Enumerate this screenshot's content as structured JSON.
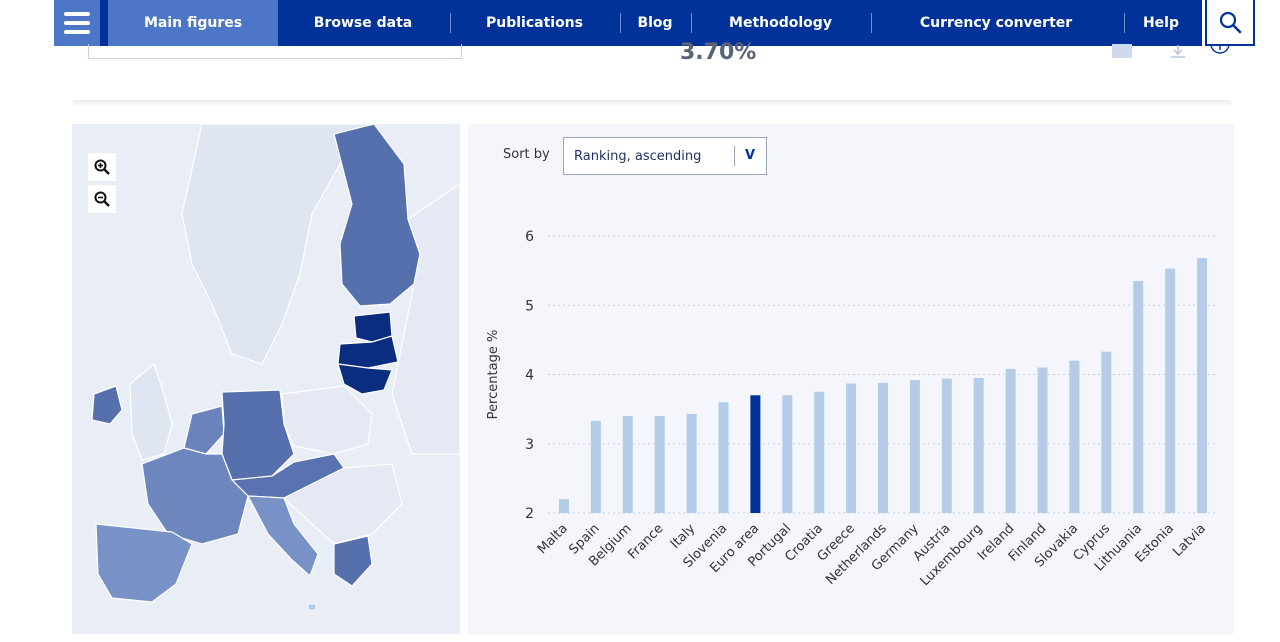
{
  "nav": {
    "items": [
      "Main figures",
      "Browse data",
      "Publications",
      "Blog",
      "Methodology",
      "Currency converter",
      "Help"
    ],
    "active_index": 0,
    "colors": {
      "bar": "#003299",
      "active": "#4d76c7"
    }
  },
  "headline": {
    "value": "3.70%"
  },
  "sort": {
    "label": "Sort by",
    "value": "Ranking, ascending",
    "arrow": "V"
  },
  "map": {
    "zoom_in_icon": "zoom-in-icon",
    "zoom_out_icon": "zoom-out-icon"
  },
  "chart_data": {
    "type": "bar",
    "ylabel": "Percentage %",
    "ylim": [
      2,
      6
    ],
    "yticks": [
      2,
      3,
      4,
      5,
      6
    ],
    "grid": true,
    "categories": [
      "Malta",
      "Spain",
      "Belgium",
      "France",
      "Italy",
      "Slovenia",
      "Euro area",
      "Portugal",
      "Croatia",
      "Greece",
      "Netherlands",
      "Germany",
      "Austria",
      "Luxembourg",
      "Ireland",
      "Finland",
      "Slovakia",
      "Cyprus",
      "Lithuania",
      "Estonia",
      "Latvia"
    ],
    "values": [
      2.2,
      3.33,
      3.4,
      3.4,
      3.43,
      3.6,
      3.7,
      3.7,
      3.75,
      3.87,
      3.88,
      3.92,
      3.94,
      3.95,
      4.08,
      4.1,
      4.2,
      4.33,
      5.35,
      5.53,
      5.68
    ],
    "highlight": "Euro area",
    "colors": {
      "bar": "#b3cde9",
      "highlight": "#003299"
    }
  }
}
